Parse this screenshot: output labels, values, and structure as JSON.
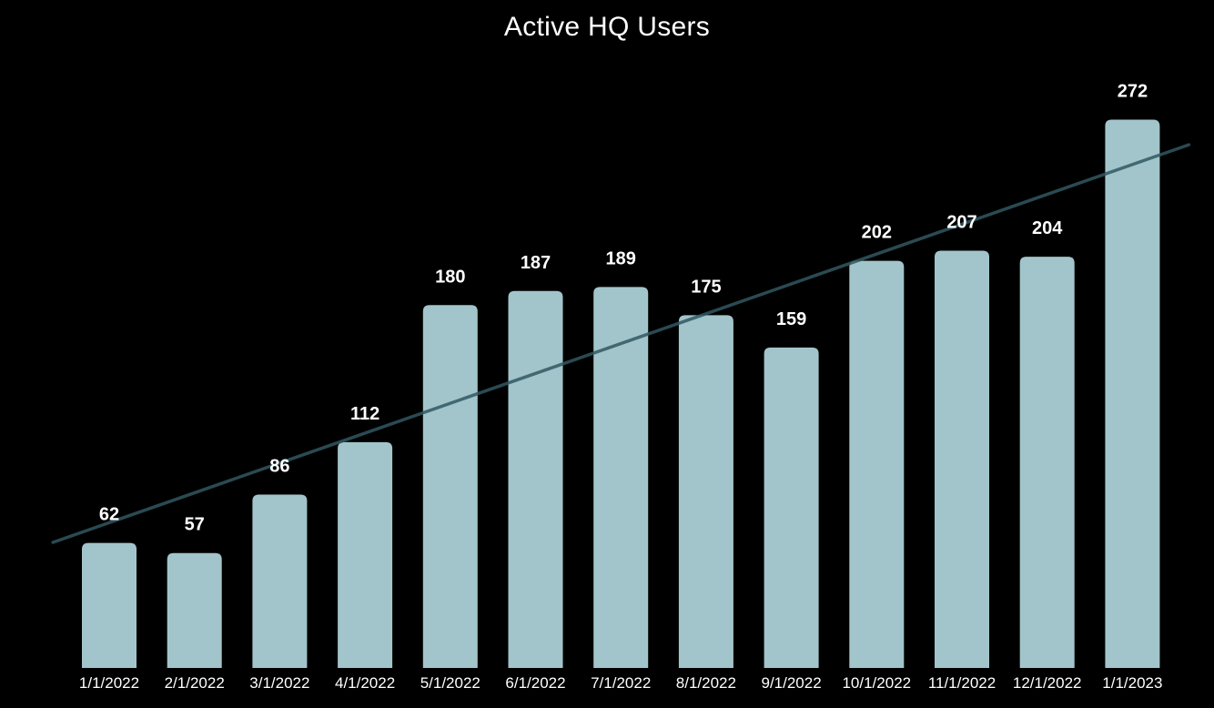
{
  "chart_data": {
    "type": "bar",
    "title": "Active HQ Users",
    "categories": [
      "1/1/2022",
      "2/1/2022",
      "3/1/2022",
      "4/1/2022",
      "5/1/2022",
      "6/1/2022",
      "7/1/2022",
      "8/1/2022",
      "9/1/2022",
      "10/1/2022",
      "11/1/2022",
      "12/1/2022",
      "1/1/2023"
    ],
    "values": [
      62,
      57,
      86,
      112,
      180,
      187,
      189,
      175,
      159,
      202,
      207,
      204,
      272
    ],
    "data_labels": true,
    "trendline": {
      "type": "linear",
      "shown": true
    },
    "axes": {
      "y_axis_visible": false,
      "x_axis_line_visible": false,
      "gridlines": false,
      "x_tick_labels_visible": true
    },
    "ylim": [
      0,
      331
    ],
    "legend": "none",
    "colors": {
      "background": "#000000",
      "bar": "#a2c5cb",
      "trendline": "#315762",
      "title_text": "#ffffff",
      "data_label_text": "#ffffff",
      "tick_label_text": "#ffffff"
    }
  }
}
